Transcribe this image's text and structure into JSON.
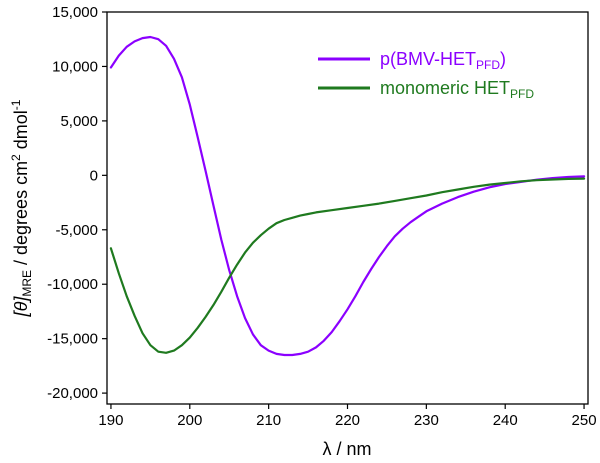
{
  "chart_data": {
    "type": "line",
    "xlabel": "λ / nm",
    "ylabel": {
      "prefix": "[θ]",
      "subscript": "MRE",
      "unit_main": " / degrees cm",
      "unit_sup1": "2",
      "unit_mid": " dmol",
      "unit_sup2": "-1"
    },
    "xlim": [
      189.5,
      250.5
    ],
    "ylim": [
      -21000,
      15000
    ],
    "x_ticks": [
      190,
      200,
      210,
      220,
      230,
      240,
      250
    ],
    "x_tick_labels": [
      "190",
      "200",
      "210",
      "220",
      "230",
      "240",
      "250"
    ],
    "y_ticks": [
      15000,
      10000,
      5000,
      0,
      -5000,
      -10000,
      -15000,
      -20000
    ],
    "y_tick_labels": [
      "15,000",
      "10,000",
      "5,000",
      "0",
      "-5,000",
      "-10,000",
      "-15,000",
      "-20,000"
    ],
    "grid": false,
    "legend_position": "top-right",
    "series": [
      {
        "name": "p(BMV-HETPFD)",
        "legend": {
          "main": "p(BMV-HET",
          "sub": "PFD",
          "tail": ")"
        },
        "color": "#8b00ff",
        "x": [
          190,
          191,
          192,
          193,
          194,
          195,
          196,
          197,
          198,
          199,
          200,
          201,
          202,
          203,
          204,
          205,
          206,
          207,
          208,
          209,
          210,
          211,
          212,
          213,
          214,
          215,
          216,
          217,
          218,
          219,
          220,
          221,
          222,
          223,
          224,
          225,
          226,
          227,
          228,
          229,
          230,
          232,
          234,
          236,
          238,
          240,
          242,
          244,
          246,
          248,
          250
        ],
        "y": [
          9900,
          11000,
          11800,
          12300,
          12600,
          12700,
          12500,
          11900,
          10700,
          9000,
          6500,
          3500,
          400,
          -2800,
          -5900,
          -8700,
          -11100,
          -13100,
          -14600,
          -15600,
          -16100,
          -16400,
          -16500,
          -16500,
          -16400,
          -16200,
          -15800,
          -15200,
          -14400,
          -13400,
          -12300,
          -11100,
          -9800,
          -8600,
          -7500,
          -6500,
          -5600,
          -4900,
          -4300,
          -3800,
          -3300,
          -2600,
          -2000,
          -1500,
          -1100,
          -800,
          -600,
          -400,
          -250,
          -150,
          -100
        ]
      },
      {
        "name": "monomeric HETPFD",
        "legend": {
          "main": "monomeric HET",
          "sub": "PFD",
          "tail": ""
        },
        "color": "#1f7a1f",
        "x": [
          190,
          191,
          192,
          193,
          194,
          195,
          196,
          197,
          198,
          199,
          200,
          201,
          202,
          203,
          204,
          205,
          206,
          207,
          208,
          209,
          210,
          211,
          212,
          213,
          214,
          215,
          216,
          218,
          220,
          222,
          224,
          226,
          228,
          230,
          232,
          234,
          236,
          238,
          240,
          242,
          244,
          246,
          248,
          250
        ],
        "y": [
          -6700,
          -9000,
          -11100,
          -12900,
          -14500,
          -15600,
          -16200,
          -16300,
          -16100,
          -15600,
          -14900,
          -14000,
          -13000,
          -11900,
          -10700,
          -9400,
          -8200,
          -7100,
          -6200,
          -5500,
          -4900,
          -4400,
          -4100,
          -3900,
          -3700,
          -3550,
          -3400,
          -3200,
          -3000,
          -2800,
          -2600,
          -2350,
          -2100,
          -1850,
          -1550,
          -1300,
          -1050,
          -850,
          -700,
          -550,
          -450,
          -380,
          -330,
          -300
        ]
      }
    ]
  }
}
